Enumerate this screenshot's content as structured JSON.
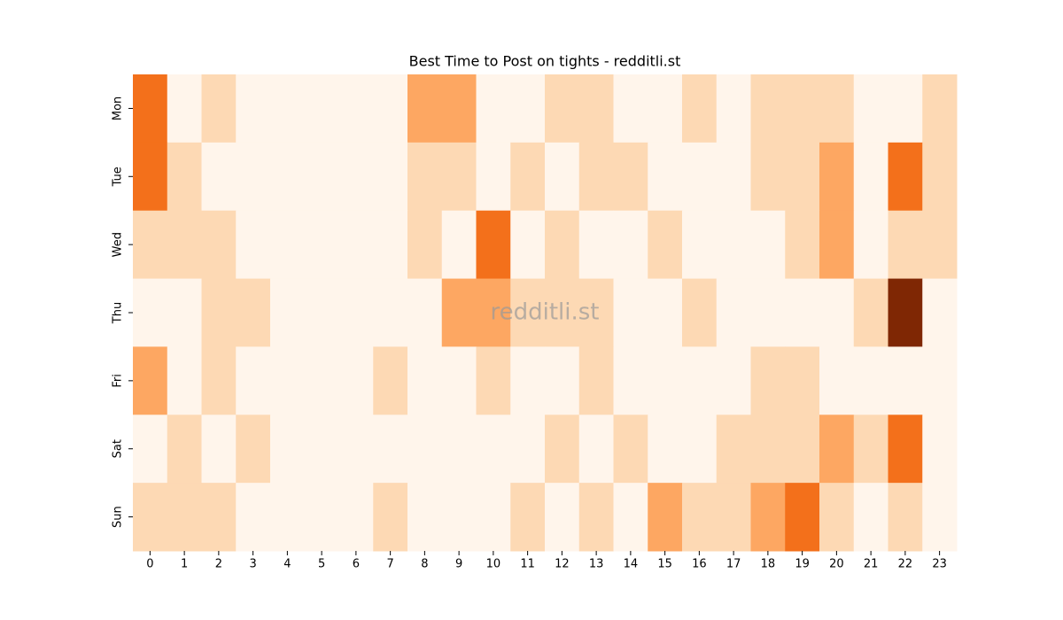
{
  "chart_data": {
    "type": "heatmap",
    "title": "Best Time to Post on tights - redditli.st",
    "watermark": "redditli.st",
    "x": [
      0,
      1,
      2,
      3,
      4,
      5,
      6,
      7,
      8,
      9,
      10,
      11,
      12,
      13,
      14,
      15,
      16,
      17,
      18,
      19,
      20,
      21,
      22,
      23
    ],
    "rows": [
      "Mon",
      "Tue",
      "Wed",
      "Thu",
      "Fri",
      "Sat",
      "Sun"
    ],
    "colormap": "Oranges",
    "values": [
      [
        3,
        0,
        1,
        0,
        0,
        0,
        0,
        0,
        2,
        2,
        0,
        0,
        1,
        1,
        0,
        0,
        1,
        0,
        1,
        1,
        1,
        0,
        0,
        1
      ],
      [
        3,
        1,
        0,
        0,
        0,
        0,
        0,
        0,
        1,
        1,
        0,
        1,
        0,
        1,
        1,
        0,
        0,
        0,
        1,
        1,
        2,
        0,
        3,
        1
      ],
      [
        1,
        1,
        1,
        0,
        0,
        0,
        0,
        0,
        1,
        0,
        3,
        0,
        1,
        0,
        0,
        1,
        0,
        0,
        0,
        1,
        2,
        0,
        1,
        1
      ],
      [
        0,
        0,
        1,
        1,
        0,
        0,
        0,
        0,
        0,
        2,
        2,
        1,
        1,
        1,
        0,
        0,
        1,
        0,
        0,
        0,
        0,
        1,
        5,
        0
      ],
      [
        2,
        0,
        1,
        0,
        0,
        0,
        0,
        1,
        0,
        0,
        1,
        0,
        0,
        1,
        0,
        0,
        0,
        0,
        1,
        1,
        0,
        0,
        0,
        0
      ],
      [
        0,
        1,
        0,
        1,
        0,
        0,
        0,
        0,
        0,
        0,
        0,
        0,
        1,
        0,
        1,
        0,
        0,
        1,
        1,
        1,
        2,
        1,
        3,
        0
      ],
      [
        1,
        1,
        1,
        0,
        0,
        0,
        0,
        1,
        0,
        0,
        0,
        1,
        0,
        1,
        0,
        2,
        1,
        1,
        2,
        3,
        1,
        0,
        1,
        0
      ]
    ]
  }
}
